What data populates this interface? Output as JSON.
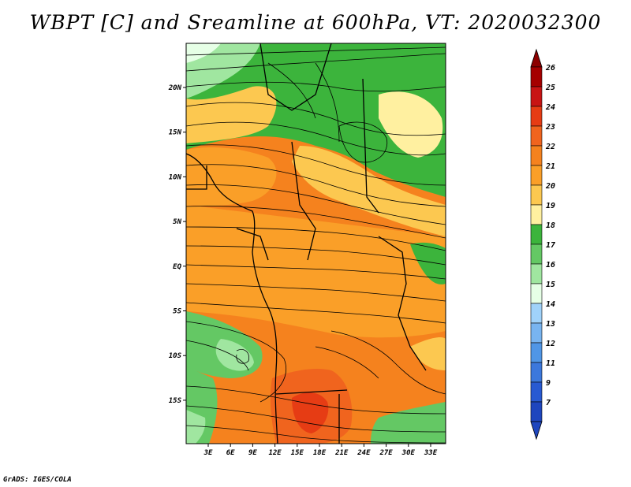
{
  "title": "WBPT [C] and Sreamline at 600hPa, VT: 2020032300",
  "footer": "GrADS: IGES/COLA",
  "map": {
    "lat_labels": [
      "20N",
      "15N",
      "10N",
      "5N",
      "EQ",
      "5S",
      "10S",
      "15S"
    ],
    "lon_labels": [
      "3E",
      "6E",
      "9E",
      "12E",
      "15E",
      "18E",
      "21E",
      "24E",
      "27E",
      "30E",
      "33E"
    ]
  },
  "colorbar": {
    "labels": [
      "26",
      "25",
      "24",
      "23",
      "22",
      "21",
      "20",
      "19",
      "18",
      "17",
      "16",
      "15",
      "14",
      "13",
      "12",
      "11",
      "9",
      "7"
    ],
    "colors": [
      "#a50000",
      "#c81414",
      "#e63c14",
      "#f0641e",
      "#f5821e",
      "#fa9f28",
      "#fcc850",
      "#fff0a0",
      "#3cb43c",
      "#64c864",
      "#a0e6a0",
      "#e6ffe6",
      "#a0d2fa",
      "#78b4f0",
      "#5096e6",
      "#3c78dc",
      "#285ad2",
      "#1e46be"
    ],
    "top_color": "#8c0000",
    "bottom_color": "#1e46be"
  }
}
